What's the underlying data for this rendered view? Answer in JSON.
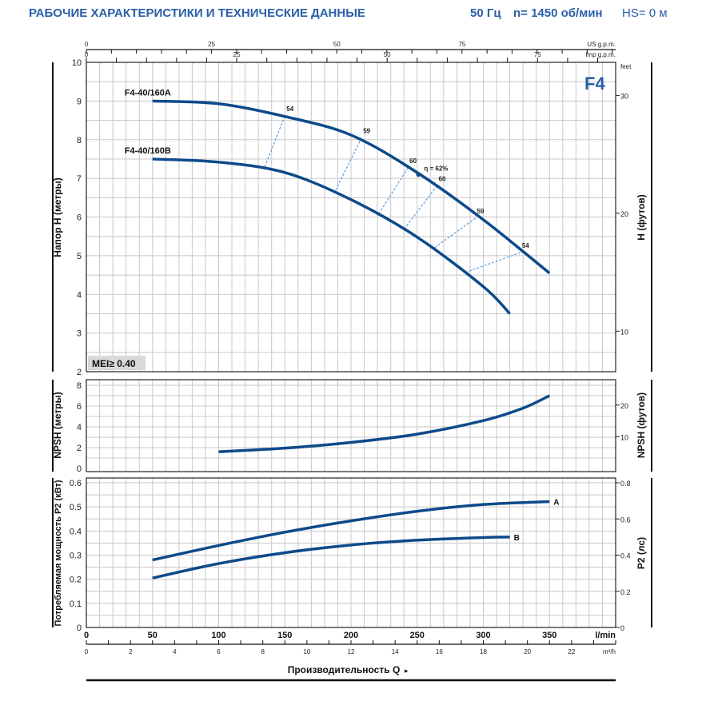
{
  "header": {
    "title": "РАБОЧИЕ ХАРАКТЕРИСТИКИ И ТЕХНИЧЕСКИЕ ДАННЫЕ",
    "frequency": "50 Гц",
    "speed": "n= 1450 об/мин",
    "hs": "HS= 0 м"
  },
  "colors": {
    "curve": "#0d4a8a",
    "efficiency": "#3f8fdc",
    "grid": "#c8c8c8",
    "header": "#2a5fa8"
  },
  "chart_data": [
    {
      "type": "line",
      "panel": "head",
      "badge": "F4",
      "mei_label": "MEI≥ 0.40",
      "ylabel": "Напор H (метры)",
      "ylabel_right": "H (футов)",
      "right_unit": "feet",
      "ylim": [
        2,
        10
      ],
      "yticks": [
        2,
        3,
        4,
        5,
        6,
        7,
        8,
        9,
        10
      ],
      "yticks_right": [
        10,
        20,
        30
      ],
      "xlim": [
        0,
        400
      ],
      "grid": true,
      "series": [
        {
          "name": "F4-40/160A",
          "x": [
            50,
            100,
            150,
            200,
            250,
            300,
            350
          ],
          "y": [
            9.0,
            8.93,
            8.6,
            8.12,
            7.15,
            5.93,
            4.55
          ]
        },
        {
          "name": "F4-40/160B",
          "x": [
            50,
            100,
            150,
            200,
            250,
            300,
            320
          ],
          "y": [
            7.5,
            7.42,
            7.15,
            6.45,
            5.48,
            4.2,
            3.5
          ]
        }
      ],
      "efficiency_lines": [
        {
          "label": "54",
          "a": [
            150,
            8.61
          ],
          "b": [
            134,
            7.23
          ]
        },
        {
          "label": "59",
          "a": [
            208,
            8.05
          ],
          "b": [
            188,
            6.67
          ]
        },
        {
          "label": "60",
          "a": [
            243,
            7.27
          ],
          "b": [
            220,
            6.03
          ]
        },
        {
          "label": "60",
          "a": [
            265,
            6.81
          ],
          "b": [
            240,
            5.68
          ]
        },
        {
          "label": "59",
          "a": [
            294,
            5.97
          ],
          "b": [
            262,
            5.18
          ]
        },
        {
          "label": "54",
          "a": [
            328,
            5.08
          ],
          "b": [
            286,
            4.56
          ]
        }
      ],
      "best_efficiency": {
        "label": "η = 62%",
        "x": 251,
        "y": 7.1
      }
    },
    {
      "type": "line",
      "panel": "npsh",
      "ylabel": "NPSH (метры)",
      "ylabel_right": "NPSH (футов)",
      "ylim": [
        0,
        8
      ],
      "yticks": [
        0,
        2,
        4,
        6,
        8
      ],
      "yticks_right": [
        10,
        20
      ],
      "grid": true,
      "series": [
        {
          "x": [
            100,
            150,
            200,
            250,
            300,
            330,
            350
          ],
          "y": [
            1.6,
            1.95,
            2.5,
            3.3,
            4.6,
            5.8,
            7.0
          ]
        }
      ]
    },
    {
      "type": "line",
      "panel": "power",
      "ylabel": "Потребляемая мощность P2 (кВт)",
      "ylabel_right": "P2 (лс)",
      "ylim": [
        0,
        0.6
      ],
      "yticks": [
        "0",
        "0.1",
        "0.2",
        "0.3",
        "0.4",
        "0.5",
        "0.6"
      ],
      "yticks_right": [
        "0",
        "0.2",
        "0.4",
        "0.6",
        "0.8"
      ],
      "grid": true,
      "series": [
        {
          "name": "A",
          "x": [
            50,
            100,
            150,
            200,
            250,
            300,
            350
          ],
          "y": [
            0.28,
            0.34,
            0.395,
            0.442,
            0.482,
            0.51,
            0.522
          ]
        },
        {
          "name": "B",
          "x": [
            50,
            100,
            150,
            200,
            250,
            300,
            320
          ],
          "y": [
            0.205,
            0.265,
            0.31,
            0.342,
            0.362,
            0.373,
            0.375
          ]
        }
      ]
    }
  ],
  "axes": {
    "x_lmin": {
      "unit": "l/min",
      "ticks": [
        0,
        50,
        100,
        150,
        200,
        250,
        300,
        350
      ]
    },
    "x_m3h": {
      "unit": "m³/h",
      "ticks": [
        0,
        2,
        4,
        6,
        8,
        10,
        12,
        14,
        16,
        18,
        20,
        22
      ]
    },
    "x_usgpm": {
      "unit": "US g.p.m.",
      "ticks": [
        0,
        25,
        50,
        75
      ]
    },
    "x_impgpm": {
      "unit": "Imp g.p.m.",
      "ticks": [
        0,
        25,
        50,
        75
      ]
    },
    "xlabel": "Производительность Q"
  }
}
